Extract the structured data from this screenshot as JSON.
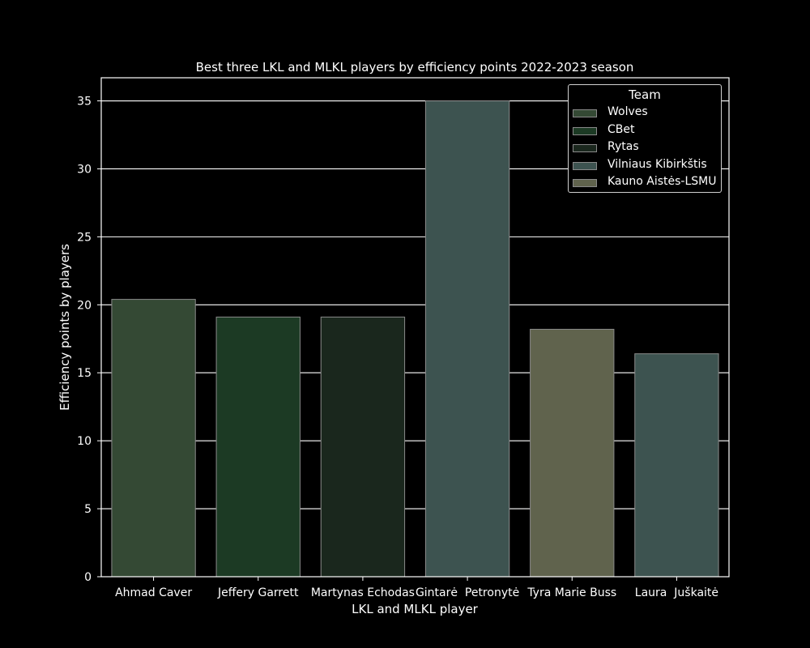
{
  "chart_data": {
    "type": "bar",
    "title": "Best three LKL and MLKL players by efficiency points 2022-2023 season",
    "xlabel": "LKL and MLKL player",
    "ylabel": "Efficiency points by players",
    "categories": [
      "Ahmad Caver",
      "Jeffery Garrett",
      "Martynas Echodas",
      "Gintarė  Petronytė",
      "Tyra Marie Buss",
      "Laura  Juškaitė"
    ],
    "values": [
      20.4,
      19.1,
      19.1,
      35.0,
      18.2,
      16.4
    ],
    "teams": [
      "Wolves",
      "CBet",
      "Rytas",
      "Vilniaus Kibirkštis",
      "Kauno Aistės-LSMU",
      "Vilniaus Kibirkštis"
    ],
    "ylim": [
      0,
      36.7
    ],
    "yticks": [
      0,
      5,
      10,
      15,
      20,
      25,
      30,
      35
    ],
    "grid": true,
    "legend": {
      "title": "Team",
      "position": "top-right",
      "entries": [
        {
          "label": "Wolves",
          "color": "#344934"
        },
        {
          "label": "CBet",
          "color": "#1c3a24"
        },
        {
          "label": "Rytas",
          "color": "#1a271d"
        },
        {
          "label": "Vilniaus Kibirkštis",
          "color": "#3d5350"
        },
        {
          "label": "Kauno Aistės-LSMU",
          "color": "#60634d"
        }
      ]
    },
    "colors": {
      "background": "#000000",
      "axes": "#ffffff",
      "grid": "#ffffff",
      "bar_edge": "#8a8a8a",
      "bars": [
        "#344934",
        "#1c3a24",
        "#1a271d",
        "#3d5350",
        "#60634d",
        "#3d5350"
      ]
    }
  }
}
